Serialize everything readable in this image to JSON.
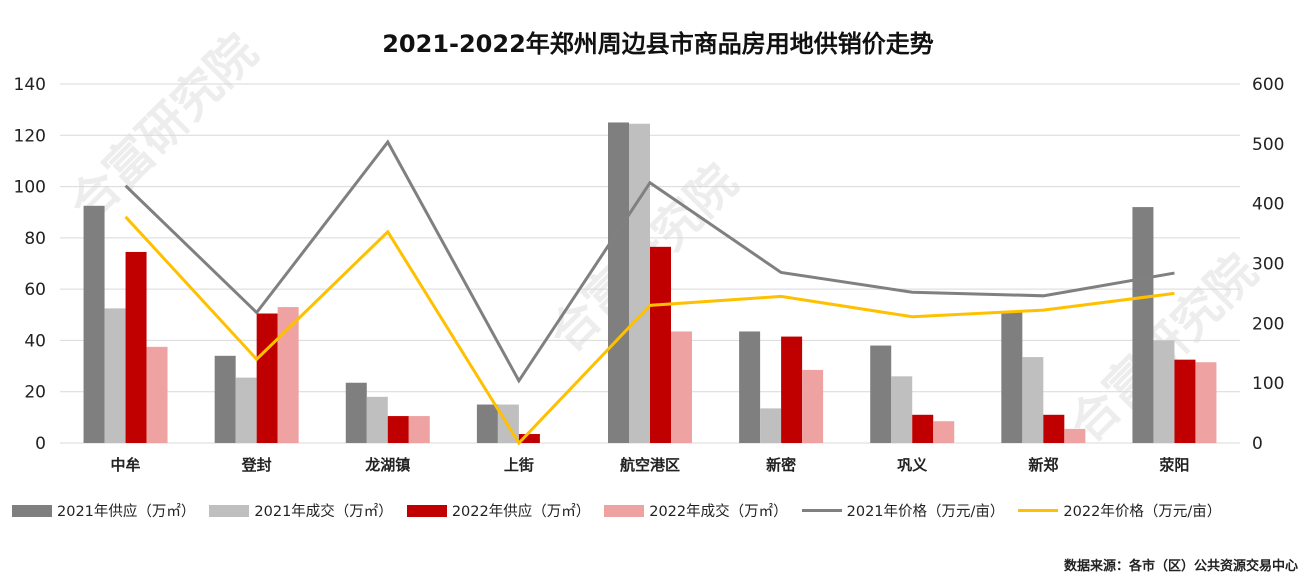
{
  "title": "2021-2022年郑州周边县市商品房用地供销价走势",
  "source": "数据来源：各市（区）公共资源交易中心",
  "watermark": "合富研究院",
  "colors": {
    "s2021_supply": "#7f7f7f",
    "s2021_deal": "#bfbfbf",
    "s2022_supply": "#c00000",
    "s2022_deal": "#eea2a2",
    "p2021": "#808080",
    "p2022": "#ffc000",
    "grid": "#d9d9d9",
    "axis_text": "#222222"
  },
  "chart_data": {
    "type": "bar",
    "title": "2021-2022年郑州周边县市商品房用地供销价走势",
    "categories": [
      "中牟",
      "登封",
      "龙湖镇",
      "上街",
      "航空港区",
      "新密",
      "巩义",
      "新郑",
      "荥阳"
    ],
    "y_left": {
      "min": 0,
      "max": 140,
      "ticks": [
        0,
        20,
        40,
        60,
        80,
        100,
        120,
        140
      ]
    },
    "y_right": {
      "min": 0,
      "max": 600,
      "ticks": [
        0,
        100,
        200,
        300,
        400,
        500,
        600
      ]
    },
    "bar_series": [
      {
        "name": "2021年供应（万㎡）",
        "color_key": "s2021_supply",
        "values": [
          92.5,
          34,
          23.5,
          15,
          125,
          43.5,
          38,
          51,
          92
        ]
      },
      {
        "name": "2021年成交（万㎡）",
        "color_key": "s2021_deal",
        "values": [
          52.5,
          25.5,
          18,
          15,
          124.5,
          13.5,
          26,
          33.5,
          40
        ]
      },
      {
        "name": "2022年供应（万㎡）",
        "color_key": "s2022_supply",
        "values": [
          74.5,
          50.5,
          10.5,
          3.5,
          76.5,
          41.5,
          11,
          11,
          32.5
        ]
      },
      {
        "name": "2022年成交（万㎡）",
        "color_key": "s2022_deal",
        "values": [
          37.5,
          53,
          10.5,
          0,
          43.5,
          28.5,
          8.5,
          5.5,
          31.5
        ]
      }
    ],
    "line_series": [
      {
        "name": "2021年价格（万元/亩）",
        "color_key": "p2021",
        "axis": "right",
        "values": [
          430,
          218,
          503,
          104,
          435,
          285,
          252,
          246,
          284
        ]
      },
      {
        "name": "2022年价格（万元/亩）",
        "color_key": "p2022",
        "axis": "right",
        "values": [
          378,
          140,
          353,
          0,
          230,
          245,
          211,
          222,
          250
        ]
      }
    ]
  },
  "legend": [
    {
      "label": "2021年供应（万㎡）",
      "kind": "bar",
      "color_key": "s2021_supply"
    },
    {
      "label": "2021年成交（万㎡）",
      "kind": "bar",
      "color_key": "s2021_deal"
    },
    {
      "label": "2022年供应（万㎡）",
      "kind": "bar",
      "color_key": "s2022_supply"
    },
    {
      "label": "2022年成交（万㎡）",
      "kind": "bar",
      "color_key": "s2022_deal"
    },
    {
      "label": "2021年价格（万元/亩）",
      "kind": "line",
      "color_key": "p2021"
    },
    {
      "label": "2022年价格（万元/亩）",
      "kind": "line",
      "color_key": "p2022"
    }
  ]
}
